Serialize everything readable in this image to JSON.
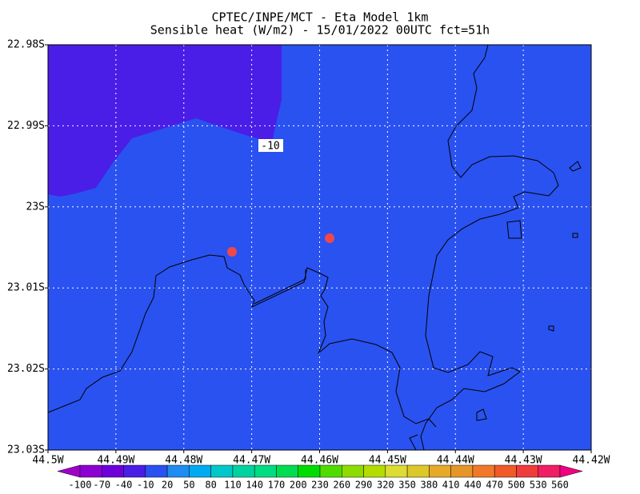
{
  "title": "CPTEC/INPE/MCT -  Eta Model 1km",
  "subtitle": "Sensible heat (W/m2) - 15/01/2022 00UTC fct=51h",
  "lat_labels": [
    "22.98S",
    "22.99S",
    "23S",
    "23.01S",
    "23.02S",
    "23.03S"
  ],
  "lon_labels": [
    "44.5W",
    "44.49W",
    "44.48W",
    "44.47W",
    "44.46W",
    "44.45W",
    "44.44W",
    "44.43W",
    "44.42W"
  ],
  "contour_label": -10,
  "colorbar": {
    "labels": [
      -100,
      -70,
      -40,
      -10,
      20,
      50,
      80,
      110,
      140,
      170,
      200,
      230,
      260,
      290,
      320,
      350,
      380,
      410,
      440,
      470,
      500,
      530,
      560
    ],
    "colors": [
      "#a000c8",
      "#8c00d2",
      "#6e00dc",
      "#4a1ee6",
      "#2a52f0",
      "#1e8cf0",
      "#00aaf0",
      "#00c8c8",
      "#00d2a0",
      "#00dc82",
      "#00dc50",
      "#00dc00",
      "#50dc00",
      "#8cdc00",
      "#b4dc00",
      "#dcdc32",
      "#dcc828",
      "#e6aa28",
      "#e69628",
      "#f07828",
      "#f05a28",
      "#f03c3c",
      "#f01e64",
      "#f00082"
    ]
  }
}
